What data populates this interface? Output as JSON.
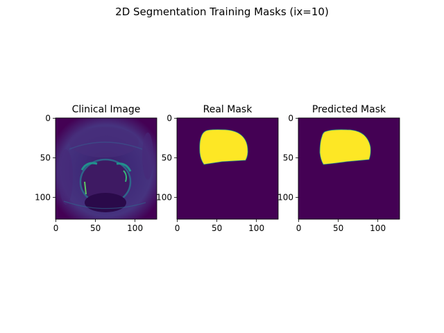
{
  "figure": {
    "suptitle": "2D Segmentation Training Masks (ix=10)"
  },
  "colors": {
    "background": "#440154",
    "mask": "#fde725",
    "edge": "#21918c",
    "highlight": "#35b779"
  },
  "chart_data": [
    {
      "type": "heatmap",
      "title": "Clinical Image",
      "content": "grayscale MRI slice rendered in viridis colormap",
      "x_range": [
        0,
        127
      ],
      "y_range": [
        0,
        127
      ],
      "y_inverted": true,
      "xticks": [
        0,
        50,
        100
      ],
      "yticks": [
        0,
        50,
        100
      ]
    },
    {
      "type": "heatmap",
      "title": "Real Mask",
      "content": "binary mask",
      "x_range": [
        0,
        127
      ],
      "y_range": [
        0,
        127
      ],
      "y_inverted": true,
      "xticks": [
        0,
        50,
        100
      ],
      "yticks": [
        0,
        50,
        100
      ],
      "region": {
        "x_min": 29,
        "x_max": 89,
        "y_min": 16,
        "y_max": 58
      }
    },
    {
      "type": "heatmap",
      "title": "Predicted Mask",
      "content": "binary mask",
      "x_range": [
        0,
        127
      ],
      "y_range": [
        0,
        127
      ],
      "y_inverted": true,
      "xticks": [
        0,
        50,
        100
      ],
      "yticks": [
        0,
        50,
        100
      ],
      "region": {
        "x_min": 27,
        "x_max": 90,
        "y_min": 15,
        "y_max": 58
      }
    }
  ]
}
